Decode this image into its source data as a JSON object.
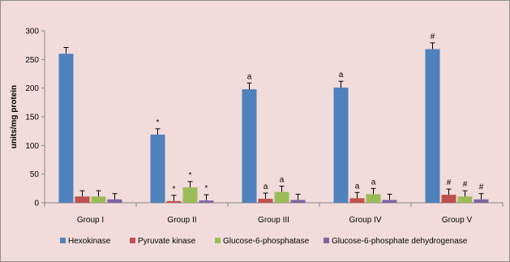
{
  "chart_data": {
    "type": "bar",
    "title": "",
    "xlabel": "",
    "ylabel": "units/mg protein",
    "ylim": [
      0,
      300
    ],
    "yticks": [
      0,
      50,
      100,
      150,
      200,
      250,
      300
    ],
    "categories": [
      "Group I",
      "Group II",
      "Group III",
      "Group IV",
      "Group V"
    ],
    "grid": false,
    "legend_position": "bottom",
    "series": [
      {
        "name": "Hexokinase",
        "color": "#4f81bd",
        "values": [
          260,
          119,
          198,
          201,
          268
        ],
        "errors": [
          11,
          10,
          11,
          11,
          11
        ],
        "annotations": [
          "",
          "*",
          "a",
          "a",
          "#"
        ]
      },
      {
        "name": "Pyruvate kinase",
        "color": "#c0504d",
        "values": [
          11,
          3,
          7,
          8,
          14
        ],
        "errors": [
          10,
          10,
          10,
          10,
          10
        ],
        "annotations": [
          "",
          "*",
          "a",
          "a",
          "#"
        ]
      },
      {
        "name": "Glucose-6-phosphatase",
        "color": "#9bbb59",
        "values": [
          11,
          27,
          19,
          15,
          11
        ],
        "errors": [
          10,
          10,
          10,
          10,
          10
        ],
        "annotations": [
          "",
          "*",
          "a",
          "a",
          "#"
        ]
      },
      {
        "name": "Glucose-6-phosphate dehydrogenase",
        "color": "#8064a2",
        "values": [
          6,
          4,
          5,
          5,
          6
        ],
        "errors": [
          10,
          10,
          10,
          10,
          10
        ],
        "annotations": [
          "",
          "*",
          "",
          "",
          "#"
        ]
      }
    ]
  }
}
